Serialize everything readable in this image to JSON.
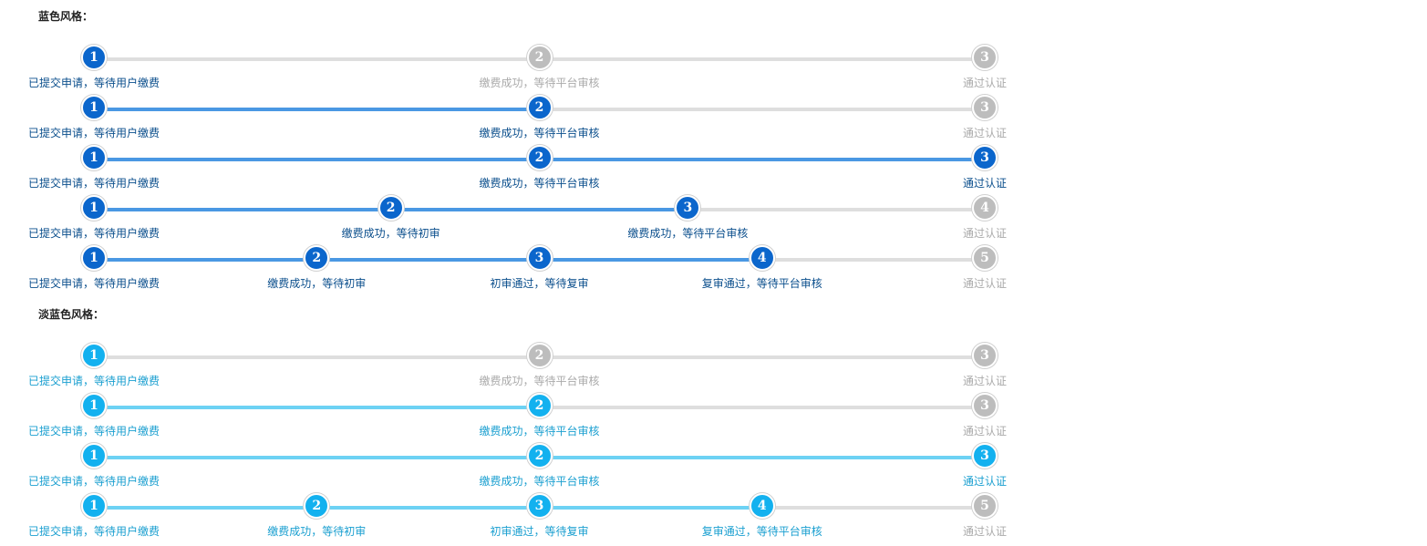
{
  "sections": [
    {
      "title": "蓝色风格：",
      "colors": {
        "active": "#0b66cc",
        "active_line": "#4a98e3",
        "active_text": "#0a4e8c",
        "inactive": "#bdbdbd",
        "inactive_line": "#dedede",
        "inactive_text": "#aaaaaa"
      },
      "steppers": [
        {
          "current": 1,
          "steps": [
            "已提交申请，等待用户缴费",
            "缴费成功，等待平台审核",
            "通过认证"
          ]
        },
        {
          "current": 2,
          "steps": [
            "已提交申请，等待用户缴费",
            "缴费成功，等待平台审核",
            "通过认证"
          ]
        },
        {
          "current": 3,
          "steps": [
            "已提交申请，等待用户缴费",
            "缴费成功，等待平台审核",
            "通过认证"
          ]
        },
        {
          "current": 3,
          "steps": [
            "已提交申请，等待用户缴费",
            "缴费成功，等待初审",
            "缴费成功，等待平台审核",
            "通过认证"
          ]
        },
        {
          "current": 4,
          "steps": [
            "已提交申请，等待用户缴费",
            "缴费成功，等待初审",
            "初审通过，等待复审",
            "复审通过，等待平台审核",
            "通过认证"
          ]
        }
      ]
    },
    {
      "title": "淡蓝色风格：",
      "colors": {
        "active": "#13b1ef",
        "active_line": "#6dd2f4",
        "active_text": "#1a9fd0",
        "inactive": "#bdbdbd",
        "inactive_line": "#dedede",
        "inactive_text": "#aaaaaa"
      },
      "steppers": [
        {
          "current": 1,
          "steps": [
            "已提交申请，等待用户缴费",
            "缴费成功，等待平台审核",
            "通过认证"
          ]
        },
        {
          "current": 2,
          "steps": [
            "已提交申请，等待用户缴费",
            "缴费成功，等待平台审核",
            "通过认证"
          ]
        },
        {
          "current": 3,
          "steps": [
            "已提交申请，等待用户缴费",
            "缴费成功，等待平台审核",
            "通过认证"
          ]
        },
        {
          "current": 4,
          "steps": [
            "已提交申请，等待用户缴费",
            "缴费成功，等待初审",
            "初审通过，等待复审",
            "复审通过，等待平台审核",
            "通过认证"
          ]
        }
      ]
    }
  ]
}
